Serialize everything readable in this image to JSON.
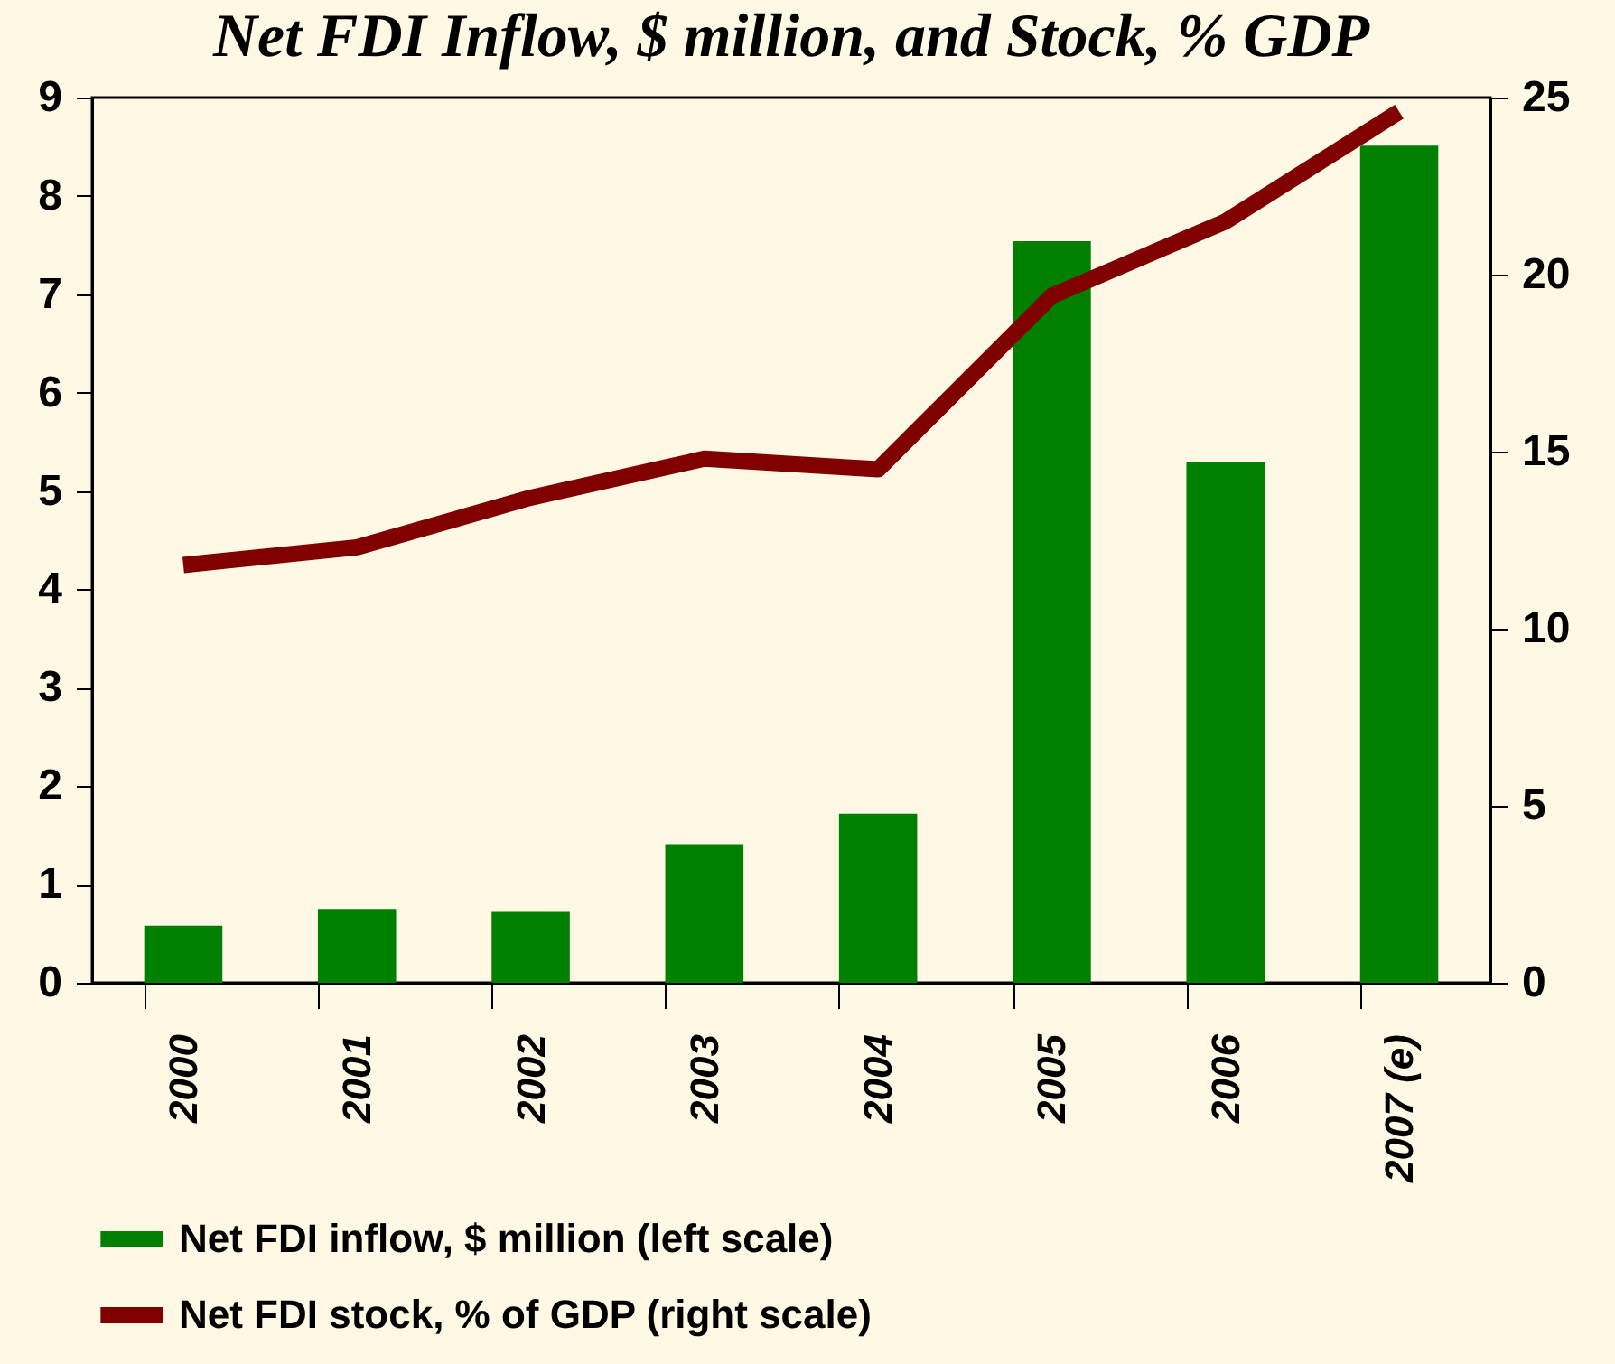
{
  "chart_data": {
    "type": "bar",
    "title": "Net FDI Inflow, $ million, and Stock, % GDP",
    "categories": [
      "2000",
      "2001",
      "2002",
      "2003",
      "2004",
      "2005",
      "2006",
      "2007 (e)"
    ],
    "series": [
      {
        "name": "Net FDI inflow, $ million (left scale)",
        "color": "#008000",
        "values": [
          0.58,
          0.75,
          0.72,
          1.41,
          1.72,
          7.54,
          5.3,
          8.51
        ]
      },
      {
        "name": "Net FDI stock, % of GDP (right scale)",
        "type": "line",
        "axis": "y2",
        "color": "#800000",
        "values": [
          11.8,
          12.3,
          13.7,
          14.8,
          14.5,
          19.4,
          21.5,
          24.6
        ]
      }
    ],
    "ylim": [
      0,
      9
    ],
    "yticks": [
      0,
      1,
      2,
      3,
      4,
      5,
      6,
      7,
      8,
      9
    ],
    "y2lim": [
      0,
      25
    ],
    "y2ticks": [
      0,
      5,
      10,
      15,
      20,
      25
    ],
    "grid": false,
    "legend": "bottom",
    "marker": "none",
    "line_style": "solid"
  }
}
